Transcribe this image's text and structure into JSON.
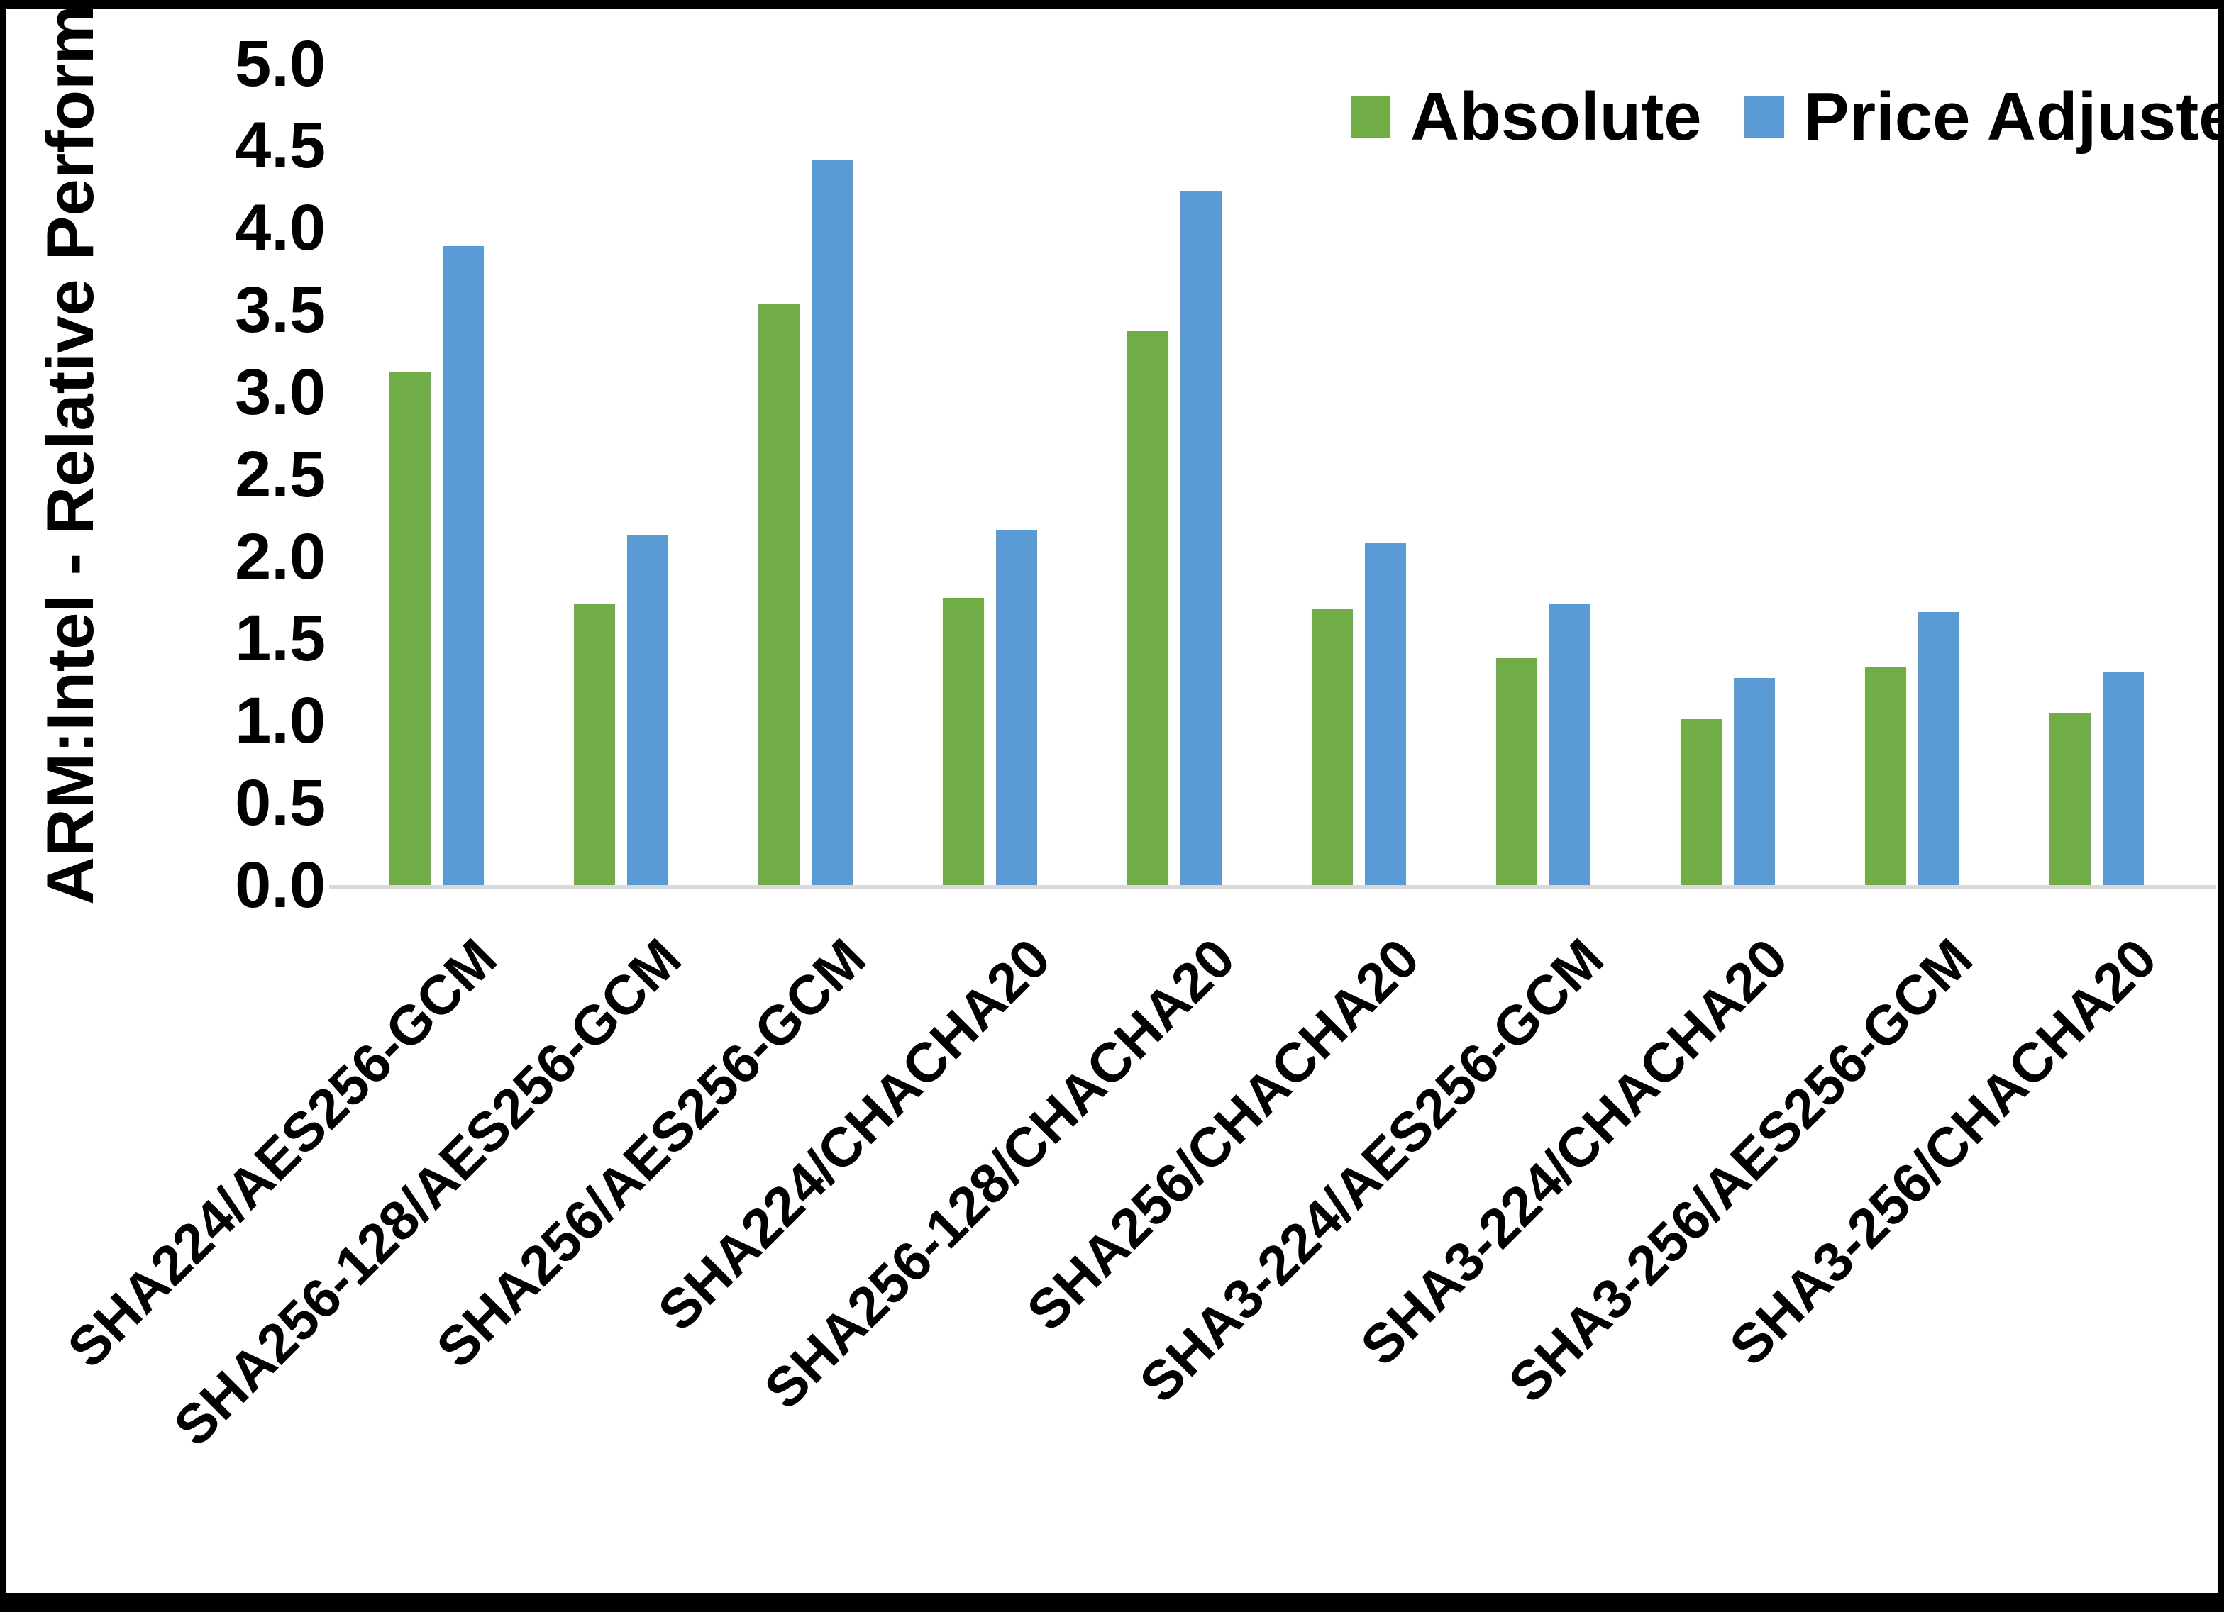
{
  "chart_data": {
    "type": "bar",
    "title": "",
    "xlabel": "",
    "ylabel": "ARM:Intel - Relative Performance",
    "ylim": [
      0.0,
      5.0
    ],
    "ytick_step": 0.5,
    "ytick_labels": [
      "0.0",
      "0.5",
      "1.0",
      "1.5",
      "2.0",
      "2.5",
      "3.0",
      "3.5",
      "4.0",
      "4.5",
      "5.0"
    ],
    "grid": false,
    "legend_position": "top-right",
    "axis_line_color": "#d9d9d9",
    "text_color": "#000000",
    "background_color": "#ffffff",
    "categories": [
      "SHA224/AES256-GCM",
      "SHA256-128/AES256-GCM",
      "SHA256/AES256-GCM",
      "SHA224/CHACHA20",
      "SHA256-128/CHACHA20",
      "SHA256/CHACHA20",
      "SHA3-224/AES256-GCM",
      "SHA3-224/CHACHA20",
      "SHA3-256/AES256-GCM",
      "SHA3-256/CHACHA20"
    ],
    "series": [
      {
        "name": "Absolute",
        "color": "#70AD47",
        "values": [
          3.12,
          1.71,
          3.54,
          1.75,
          3.37,
          1.68,
          1.38,
          1.01,
          1.33,
          1.05
        ]
      },
      {
        "name": "Price Adjusted",
        "color": "#5B9BD5",
        "values": [
          3.89,
          2.13,
          4.41,
          2.16,
          4.22,
          2.08,
          1.71,
          1.26,
          1.66,
          1.3
        ]
      }
    ]
  }
}
